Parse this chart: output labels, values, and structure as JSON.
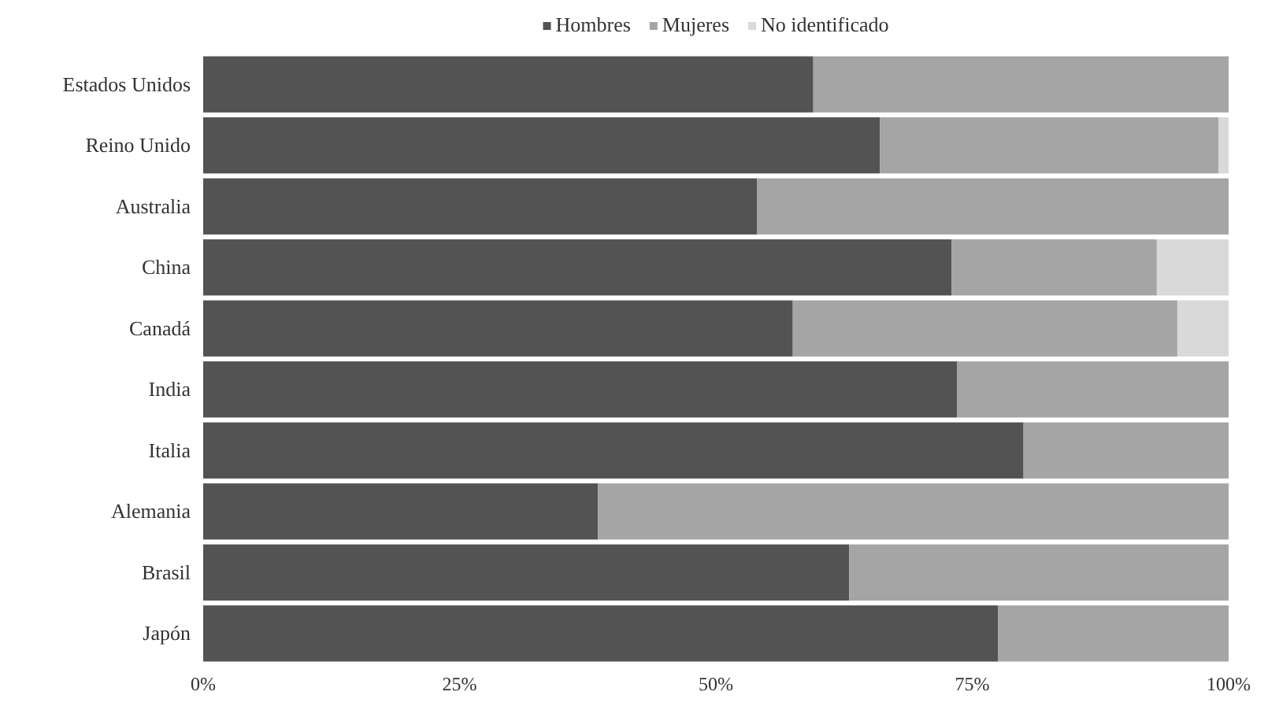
{
  "chart_data": {
    "type": "bar",
    "orientation": "horizontal",
    "stacked": true,
    "categories": [
      "Estados Unidos",
      "Reino Unido",
      "Australia",
      "China",
      "Canadá",
      "India",
      "Italia",
      "Alemania",
      "Brasil",
      "Japón"
    ],
    "series": [
      {
        "name": "Hombres",
        "color": "#535353",
        "values": [
          59.5,
          66,
          54,
          73,
          57.5,
          73.5,
          80,
          38.5,
          63,
          77.5
        ]
      },
      {
        "name": "Mujeres",
        "color": "#a5a5a5",
        "values": [
          40.5,
          33,
          46,
          20,
          37.5,
          26.5,
          20,
          61.5,
          37,
          22.5
        ]
      },
      {
        "name": "No identificado",
        "color": "#d9d9d9",
        "values": [
          0,
          1,
          0,
          7,
          5,
          0,
          0,
          0,
          0,
          0
        ]
      }
    ],
    "xlim": [
      0,
      100
    ],
    "xticks": [
      {
        "value": 0,
        "label": "0%"
      },
      {
        "value": 25,
        "label": "25%"
      },
      {
        "value": 50,
        "label": "50%"
      },
      {
        "value": 75,
        "label": "75%"
      },
      {
        "value": 100,
        "label": "100%"
      }
    ],
    "grid": false,
    "legend": "top"
  }
}
